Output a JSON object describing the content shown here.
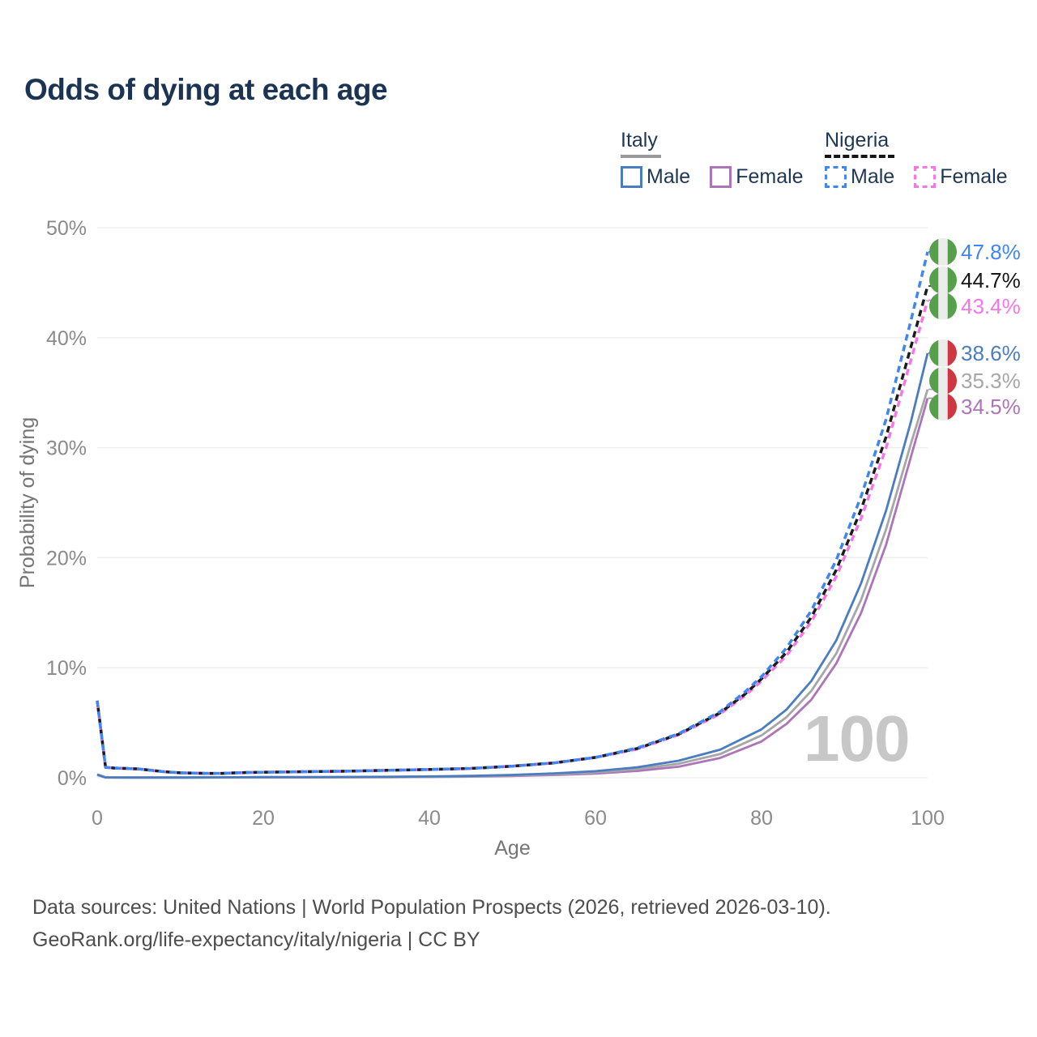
{
  "title": "Odds of dying at each age",
  "watermark": "100",
  "footer": {
    "line1": "Data sources: United Nations | World Population Prospects (2026, retrieved 2026-03-10).",
    "line2": "GeoRank.org/life-expectancy/italy/nigeria | CC BY"
  },
  "legend": {
    "groups": [
      {
        "name": "Italy",
        "line_style": "solid",
        "underline_color": "#9a9a9a",
        "items": [
          {
            "label": "Male",
            "color": "#4a7cc0"
          },
          {
            "label": "Female",
            "color": "#ad74b8"
          }
        ]
      },
      {
        "name": "Nigeria",
        "line_style": "dashed",
        "underline_color": "#151515",
        "items": [
          {
            "label": "Male",
            "color": "#3f86f2"
          },
          {
            "label": "Female",
            "color": "#f776e6"
          }
        ]
      }
    ]
  },
  "flags": {
    "nigeria": {
      "stripes": [
        "#57a04b",
        "#ececec",
        "#57a04b"
      ]
    },
    "italy": {
      "stripes": [
        "#57a04b",
        "#ececec",
        "#ce3642"
      ]
    }
  },
  "chart_data": {
    "type": "line",
    "title": "Odds of dying at each age",
    "xlabel": "Age",
    "ylabel": "Probability of dying",
    "x_range": [
      0,
      100
    ],
    "y_range": [
      0,
      50
    ],
    "grid": true,
    "grid_color": "#ededed",
    "tick_color": "#8a8a8a",
    "axis_title_color": "#757575",
    "x_ticks": [
      {
        "value": 0,
        "label": "0"
      },
      {
        "value": 20,
        "label": "20"
      },
      {
        "value": 40,
        "label": "40"
      },
      {
        "value": 60,
        "label": "60"
      },
      {
        "value": 80,
        "label": "80"
      },
      {
        "value": 100,
        "label": "100"
      }
    ],
    "y_ticks": [
      {
        "value": 0,
        "label": "0%"
      },
      {
        "value": 10,
        "label": "10%"
      },
      {
        "value": 20,
        "label": "20%"
      },
      {
        "value": 30,
        "label": "30%"
      },
      {
        "value": 40,
        "label": "40%"
      },
      {
        "value": 50,
        "label": "50%"
      }
    ],
    "series": [
      {
        "id": "italy-female",
        "name": "Italy Female",
        "country": "Italy",
        "sex": "Female",
        "color": "#ad74b8",
        "label_color": "#ad74b8",
        "dash": null,
        "dash_offset": 0,
        "flag": "italy",
        "end_label": "34.5%",
        "end_value": 34.5,
        "points": [
          [
            0,
            0.25
          ],
          [
            1,
            0.023
          ],
          [
            5,
            0.015
          ],
          [
            10,
            0.015
          ],
          [
            15,
            0.022
          ],
          [
            20,
            0.032
          ],
          [
            25,
            0.032
          ],
          [
            30,
            0.04
          ],
          [
            35,
            0.05
          ],
          [
            40,
            0.07
          ],
          [
            45,
            0.1
          ],
          [
            50,
            0.16
          ],
          [
            55,
            0.25
          ],
          [
            60,
            0.38
          ],
          [
            65,
            0.62
          ],
          [
            70,
            1.0
          ],
          [
            75,
            1.8
          ],
          [
            80,
            3.3
          ],
          [
            83,
            4.9
          ],
          [
            86,
            7.1
          ],
          [
            89,
            10.4
          ],
          [
            92,
            15.0
          ],
          [
            95,
            21.2
          ],
          [
            98,
            29.2
          ],
          [
            100,
            34.5
          ]
        ]
      },
      {
        "id": "italy-both",
        "name": "Italy (both sexes)",
        "country": "Italy",
        "sex": "Both",
        "color": "#a6a6a6",
        "label_color": "#a6a6a6",
        "dash": null,
        "dash_offset": 0,
        "flag": "italy",
        "end_label": "35.3%",
        "end_value": 35.3,
        "points": [
          [
            0,
            0.28
          ],
          [
            1,
            0.027
          ],
          [
            5,
            0.018
          ],
          [
            10,
            0.018
          ],
          [
            15,
            0.03
          ],
          [
            20,
            0.045
          ],
          [
            25,
            0.045
          ],
          [
            30,
            0.055
          ],
          [
            35,
            0.07
          ],
          [
            40,
            0.095
          ],
          [
            45,
            0.135
          ],
          [
            50,
            0.21
          ],
          [
            55,
            0.32
          ],
          [
            60,
            0.49
          ],
          [
            65,
            0.78
          ],
          [
            70,
            1.27
          ],
          [
            75,
            2.15
          ],
          [
            80,
            3.85
          ],
          [
            83,
            5.5
          ],
          [
            86,
            7.9
          ],
          [
            89,
            11.3
          ],
          [
            92,
            16.2
          ],
          [
            95,
            22.6
          ],
          [
            98,
            30.4
          ],
          [
            100,
            35.3
          ]
        ]
      },
      {
        "id": "italy-male",
        "name": "Italy Male",
        "country": "Italy",
        "sex": "Male",
        "color": "#4a7cc0",
        "label_color": "#4a7cc0",
        "dash": null,
        "dash_offset": 0,
        "flag": "italy",
        "end_label": "38.6%",
        "end_value": 38.6,
        "points": [
          [
            0,
            0.3
          ],
          [
            1,
            0.03
          ],
          [
            5,
            0.02
          ],
          [
            10,
            0.02
          ],
          [
            15,
            0.04
          ],
          [
            20,
            0.06
          ],
          [
            25,
            0.06
          ],
          [
            30,
            0.07
          ],
          [
            35,
            0.09
          ],
          [
            40,
            0.12
          ],
          [
            45,
            0.17
          ],
          [
            50,
            0.26
          ],
          [
            55,
            0.4
          ],
          [
            60,
            0.6
          ],
          [
            65,
            0.95
          ],
          [
            70,
            1.55
          ],
          [
            75,
            2.55
          ],
          [
            80,
            4.4
          ],
          [
            83,
            6.2
          ],
          [
            86,
            8.8
          ],
          [
            89,
            12.5
          ],
          [
            92,
            17.7
          ],
          [
            95,
            24.3
          ],
          [
            98,
            32.4
          ],
          [
            100,
            38.6
          ]
        ]
      },
      {
        "id": "nigeria-female",
        "name": "Nigeria Female",
        "country": "Nigeria",
        "sex": "Female",
        "color": "#f776e6",
        "label_color": "#f776e6",
        "dash": "8 5.5",
        "dash_offset": 9,
        "flag": "nigeria",
        "end_label": "43.4%",
        "end_value": 43.4,
        "points": [
          [
            0,
            7.0
          ],
          [
            1,
            0.95
          ],
          [
            2,
            0.88
          ],
          [
            5,
            0.8
          ],
          [
            8,
            0.55
          ],
          [
            10,
            0.45
          ],
          [
            13,
            0.4
          ],
          [
            15,
            0.4
          ],
          [
            18,
            0.48
          ],
          [
            20,
            0.5
          ],
          [
            25,
            0.55
          ],
          [
            30,
            0.6
          ],
          [
            35,
            0.68
          ],
          [
            40,
            0.75
          ],
          [
            45,
            0.85
          ],
          [
            50,
            1.05
          ],
          [
            55,
            1.35
          ],
          [
            60,
            1.85
          ],
          [
            65,
            2.6
          ],
          [
            70,
            3.9
          ],
          [
            75,
            5.8
          ],
          [
            78,
            7.45
          ],
          [
            80,
            8.8
          ],
          [
            83,
            11.1
          ],
          [
            86,
            14.2
          ],
          [
            89,
            18.3
          ],
          [
            92,
            23.6
          ],
          [
            95,
            30.0
          ],
          [
            98,
            38.0
          ],
          [
            100,
            43.4
          ]
        ]
      },
      {
        "id": "nigeria-both",
        "name": "Nigeria (both sexes)",
        "country": "Nigeria",
        "sex": "Both",
        "color": "#1c1c1c",
        "label_color": "#161616",
        "dash": "8 5.5",
        "dash_offset": 4.5,
        "flag": "nigeria",
        "end_label": "44.7%",
        "end_value": 44.7,
        "points": [
          [
            0,
            7.0
          ],
          [
            1,
            0.95
          ],
          [
            2,
            0.88
          ],
          [
            5,
            0.8
          ],
          [
            8,
            0.55
          ],
          [
            10,
            0.45
          ],
          [
            13,
            0.4
          ],
          [
            15,
            0.4
          ],
          [
            18,
            0.48
          ],
          [
            20,
            0.5
          ],
          [
            25,
            0.55
          ],
          [
            30,
            0.6
          ],
          [
            35,
            0.68
          ],
          [
            40,
            0.75
          ],
          [
            45,
            0.85
          ],
          [
            50,
            1.05
          ],
          [
            55,
            1.35
          ],
          [
            60,
            1.85
          ],
          [
            65,
            2.65
          ],
          [
            70,
            3.95
          ],
          [
            75,
            5.9
          ],
          [
            78,
            7.6
          ],
          [
            80,
            9.0
          ],
          [
            83,
            11.4
          ],
          [
            86,
            14.6
          ],
          [
            89,
            18.9
          ],
          [
            92,
            24.4
          ],
          [
            95,
            31.0
          ],
          [
            98,
            39.2
          ],
          [
            100,
            44.7
          ]
        ]
      },
      {
        "id": "nigeria-male",
        "name": "Nigeria Male",
        "country": "Nigeria",
        "sex": "Male",
        "color": "#3f86f2",
        "label_color": "#3f86f2",
        "dash": "8 5.5",
        "dash_offset": 0,
        "flag": "nigeria",
        "end_label": "47.8%",
        "end_value": 47.8,
        "points": [
          [
            0,
            7.0
          ],
          [
            1,
            0.95
          ],
          [
            2,
            0.88
          ],
          [
            5,
            0.8
          ],
          [
            8,
            0.55
          ],
          [
            10,
            0.45
          ],
          [
            13,
            0.4
          ],
          [
            15,
            0.4
          ],
          [
            18,
            0.48
          ],
          [
            20,
            0.5
          ],
          [
            25,
            0.55
          ],
          [
            30,
            0.6
          ],
          [
            35,
            0.68
          ],
          [
            40,
            0.75
          ],
          [
            45,
            0.85
          ],
          [
            50,
            1.05
          ],
          [
            55,
            1.35
          ],
          [
            60,
            1.85
          ],
          [
            65,
            2.7
          ],
          [
            70,
            4.0
          ],
          [
            75,
            6.0
          ],
          [
            78,
            7.8
          ],
          [
            80,
            9.2
          ],
          [
            83,
            11.8
          ],
          [
            86,
            15.2
          ],
          [
            89,
            19.8
          ],
          [
            92,
            25.6
          ],
          [
            95,
            32.6
          ],
          [
            98,
            41.6
          ],
          [
            100,
            47.8
          ]
        ]
      }
    ]
  }
}
